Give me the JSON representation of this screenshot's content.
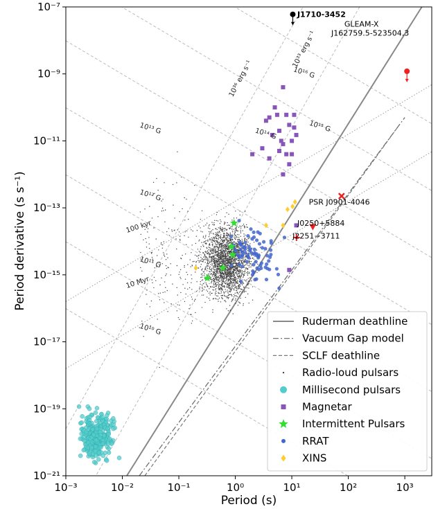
{
  "chart_data": {
    "type": "scatter",
    "xlabel": "Period (s)",
    "ylabel": "Period derivative (s s⁻¹)",
    "x_scale": "log",
    "y_scale": "log",
    "xlim": [
      0.001,
      3000
    ],
    "ylim": [
      1e-21,
      1e-07
    ],
    "x_ticks": [
      {
        "value": 0.001,
        "label": "10⁻³"
      },
      {
        "value": 0.01,
        "label": "10⁻²"
      },
      {
        "value": 0.1,
        "label": "10⁻¹"
      },
      {
        "value": 1,
        "label": "10⁰"
      },
      {
        "value": 10,
        "label": "10¹"
      },
      {
        "value": 100,
        "label": "10²"
      },
      {
        "value": 1000,
        "label": "10³"
      }
    ],
    "y_ticks": [
      {
        "value": 1e-21,
        "label": "10⁻²¹"
      },
      {
        "value": 1e-19,
        "label": "10⁻¹⁹"
      },
      {
        "value": 1e-17,
        "label": "10⁻¹⁷"
      },
      {
        "value": 1e-15,
        "label": "10⁻¹⁵"
      },
      {
        "value": 1e-13,
        "label": "10⁻¹³"
      },
      {
        "value": 1e-11,
        "label": "10⁻¹¹"
      },
      {
        "value": 1e-09,
        "label": "10⁻⁹"
      },
      {
        "value": 1e-07,
        "label": "10⁻⁷"
      }
    ],
    "b_field_lines": [
      {
        "label": "10¹⁰ G",
        "gauss": 10000000000.0
      },
      {
        "label": "10¹¹ G",
        "gauss": 100000000000.0
      },
      {
        "label": "10¹² G",
        "gauss": 1000000000000.0
      },
      {
        "label": "10¹³ G",
        "gauss": 10000000000000.0
      },
      {
        "label": "10¹⁴ G",
        "gauss": 100000000000000.0
      },
      {
        "label": "10¹⁵ G",
        "gauss": 1000000000000000.0
      },
      {
        "label": "10¹⁶ G",
        "gauss": 1e+16
      }
    ],
    "age_lines": [
      {
        "label": "100 kyr",
        "years": 100000.0
      },
      {
        "label": "10 Myr",
        "years": 10000000.0
      }
    ],
    "edot_lines": [
      {
        "label": "10³³ erg s⁻¹",
        "erg_s": 1e+33
      },
      {
        "label": "10³⁶ erg s⁻¹",
        "erg_s": 1e+36
      }
    ],
    "deathlines": [
      {
        "name": "Ruderman deathline",
        "style": "solid",
        "points": [
          [
            0.012,
            1e-21
          ],
          [
            2000,
            1e-07
          ]
        ]
      },
      {
        "name": "Vacuum Gap model",
        "style": "dashdot",
        "points": [
          [
            0.02,
            1e-21
          ],
          [
            1000,
            5e-11
          ]
        ]
      },
      {
        "name": "SCLF deathline",
        "style": "dashed",
        "points": [
          [
            0.025,
            1e-21
          ],
          [
            800,
            3e-11
          ]
        ]
      }
    ],
    "series": [
      {
        "name": "Radio-loud pulsars",
        "marker": "dot",
        "color": "#444444",
        "n_points": 2600
      },
      {
        "name": "Millisecond pulsars",
        "marker": "circle",
        "color": "#55cccc",
        "n_points": 280
      },
      {
        "name": "Magnetar",
        "marker": "square",
        "color": "#8855bb",
        "points": [
          [
            7,
            4e-10
          ],
          [
            3.5,
            4e-11
          ],
          [
            4.5,
            1.5e-11
          ],
          [
            6,
            2e-11
          ],
          [
            5,
            1e-10
          ],
          [
            8,
            6e-11
          ],
          [
            9,
            3e-11
          ],
          [
            10,
            1e-11
          ],
          [
            11,
            2.5e-11
          ],
          [
            7,
            8e-12
          ],
          [
            6,
            5e-12
          ],
          [
            8,
            4e-12
          ],
          [
            3,
            6e-12
          ],
          [
            4,
            3e-12
          ],
          [
            9,
            2e-12
          ],
          [
            10,
            4e-12
          ],
          [
            11,
            6e-11
          ],
          [
            5.5,
            6e-11
          ],
          [
            6.5,
            1e-11
          ],
          [
            4,
            5e-11
          ],
          [
            12,
            1.5e-11
          ],
          [
            2,
            4e-12
          ],
          [
            7,
            1e-12
          ],
          [
            12,
            3e-14
          ],
          [
            9,
            1.4e-15
          ]
        ]
      },
      {
        "name": "Intermittent Pulsars",
        "marker": "star",
        "color": "#33dd33",
        "points": [
          [
            0.95,
            3.5e-14
          ],
          [
            0.85,
            7e-15
          ],
          [
            0.9,
            4e-15
          ],
          [
            0.6,
            1.6e-15
          ],
          [
            0.32,
            8e-16
          ]
        ]
      },
      {
        "name": "RRAT",
        "marker": "circle",
        "color": "#4466cc",
        "n_points": 80
      },
      {
        "name": "XINS",
        "marker": "diamond",
        "color": "#ffcc33",
        "points": [
          [
            8.4,
            9e-14
          ],
          [
            7.0,
            3e-14
          ],
          [
            10.3,
            1.1e-13
          ],
          [
            3.5,
            3e-14
          ],
          [
            11.4,
            1.5e-13
          ],
          [
            0.2,
            1.6e-15
          ]
        ]
      }
    ],
    "highlighted": [
      {
        "name": "J1710-3452",
        "period": 10.4,
        "pdot": 6e-08,
        "marker": "circle",
        "color": "#000000",
        "limit": "upper"
      },
      {
        "name": "GLEAM-X J162759.5-523504.3",
        "period": 1091,
        "pdot": 1.2e-09,
        "marker": "circle",
        "color": "#ee2222",
        "limit": "upper"
      },
      {
        "name": "PSR J0901-4046",
        "period": 75.9,
        "pdot": 2.25e-13,
        "marker": "x",
        "color": "#ee2222"
      },
      {
        "name": "J0250+5884",
        "period": 23.5,
        "pdot": 2.7e-14,
        "marker": "triangle-down",
        "color": "#ee2222"
      },
      {
        "name": "J2251−3711",
        "period": 12.1,
        "pdot": 1.3e-14,
        "marker": "plus",
        "color": "#ee2222"
      }
    ],
    "legend_position": "lower-right",
    "grid": false
  }
}
